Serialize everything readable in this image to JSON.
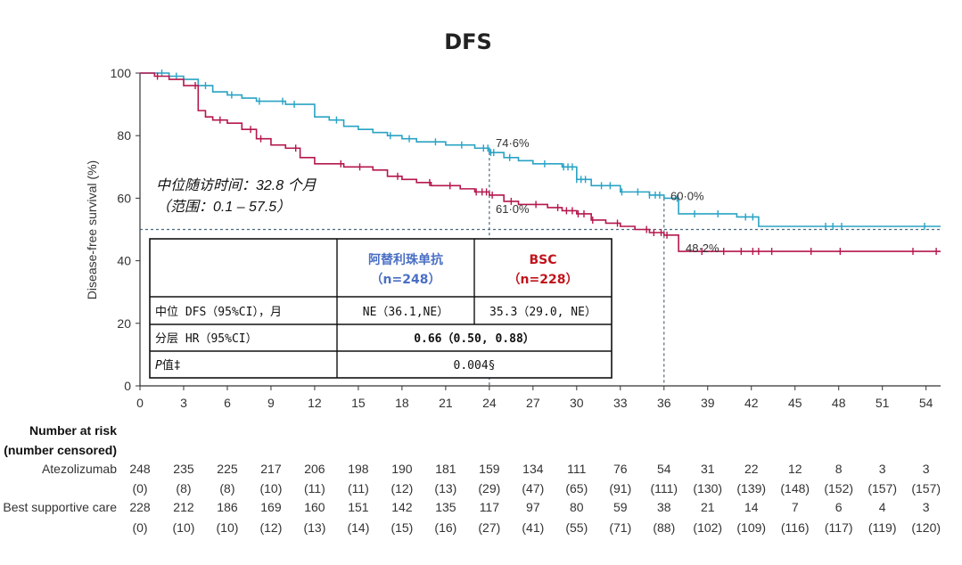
{
  "chart_data": {
    "type": "line",
    "title": "DFS",
    "xlabel": "",
    "ylabel": "Disease-free survival (%)",
    "xlim": [
      0,
      55
    ],
    "ylim": [
      0,
      100
    ],
    "xticks": [
      0,
      3,
      6,
      9,
      12,
      15,
      18,
      21,
      24,
      27,
      30,
      33,
      36,
      39,
      42,
      45,
      48,
      51,
      54
    ],
    "yticks": [
      0,
      20,
      40,
      60,
      80,
      100
    ],
    "reference_line_y": 50,
    "series": [
      {
        "name": "Atezolizumab",
        "color": "#29a3c4",
        "x": [
          0,
          1,
          2,
          3,
          4,
          5,
          6,
          7,
          8,
          9,
          10,
          11,
          12,
          13,
          14,
          15,
          16,
          17,
          18,
          19,
          20,
          21,
          22,
          23,
          24,
          25,
          26,
          27,
          28,
          29,
          30,
          31,
          32,
          33,
          34,
          35,
          36,
          37,
          38,
          39,
          40,
          41,
          42,
          42.5,
          44,
          46,
          48,
          50,
          52,
          54,
          55
        ],
        "y": [
          100,
          100,
          99,
          98,
          96,
          94,
          93,
          92,
          91,
          91,
          90,
          90,
          86,
          85,
          83,
          82,
          81,
          80,
          79,
          78,
          78,
          77,
          77,
          76,
          74.6,
          73,
          72,
          71,
          71,
          70,
          66,
          64,
          64,
          62,
          62,
          61,
          60.0,
          55,
          55,
          55,
          55,
          54,
          54,
          51,
          51,
          51,
          51,
          51,
          51,
          51,
          51
        ],
        "censor_x": [
          1.5,
          2.5,
          4.5,
          6.3,
          8.2,
          9.8,
          10.6,
          13.5,
          17.2,
          18.5,
          20.3,
          22.1,
          23.6,
          23.9,
          24.1,
          24.3,
          25.4,
          27.8,
          29.1,
          29.4,
          29.7,
          30.0,
          30.3,
          30.6,
          31.7,
          32.3,
          33.1,
          34.2,
          35.0,
          35.4,
          35.7,
          36.9,
          38.1,
          39.7,
          41.6,
          42.1,
          47.1,
          47.6,
          48.2,
          53.9
        ]
      },
      {
        "name": "Best supportive care",
        "color": "#b5174b",
        "x": [
          0,
          1,
          2,
          3,
          4,
          4.5,
          5,
          6,
          7,
          8,
          9,
          10,
          11,
          12,
          13,
          14,
          15,
          16,
          17,
          18,
          19,
          20,
          21,
          22,
          23,
          24,
          25,
          26,
          27,
          28,
          29,
          30,
          31,
          32,
          33,
          34,
          35,
          36,
          37,
          38,
          39,
          42,
          45,
          48,
          51,
          54,
          55
        ],
        "y": [
          100,
          99,
          98,
          96,
          88,
          86,
          85,
          84,
          82,
          79,
          77,
          76,
          73,
          71,
          71,
          70,
          70,
          69,
          67,
          66,
          65,
          64,
          64,
          63,
          62,
          61.0,
          59,
          58,
          58,
          57,
          56,
          55,
          53,
          52,
          51,
          50,
          49,
          48.2,
          43,
          43,
          43,
          43,
          43,
          43,
          43,
          43,
          43
        ],
        "censor_x": [
          1.2,
          3.8,
          5.5,
          7.6,
          8.3,
          10.7,
          13.8,
          15.1,
          17.7,
          19.9,
          21.3,
          23.1,
          23.5,
          23.8,
          24.2,
          25.5,
          27.2,
          28.7,
          29.3,
          29.7,
          30.1,
          30.5,
          31.1,
          32.8,
          34.8,
          35.3,
          35.8,
          36.2,
          38.6,
          40.1,
          41.3,
          42.1,
          42.5,
          43.4,
          46.1,
          48.1,
          53.1,
          54.7
        ]
      }
    ],
    "annotations": [
      {
        "text": "74·6%",
        "x": 24,
        "y": 74.6,
        "series": 0
      },
      {
        "text": "61·0%",
        "x": 24,
        "y": 61.0,
        "series": 1
      },
      {
        "text": "60·0%",
        "x": 36,
        "y": 60.0,
        "series": 0
      },
      {
        "text": "48·2%",
        "x": 36,
        "y": 48.2,
        "series": 1
      }
    ],
    "vertical_markers_x": [
      24,
      36
    ],
    "legend": "none"
  },
  "follow_up": {
    "line1": "中位随访时间：32.8 个月",
    "line2": "（范围：0.1 – 57.5）"
  },
  "table": {
    "col1_header": "阿替利珠单抗",
    "col1_n": "（n=248）",
    "col2_header": "BSC",
    "col2_n": "（n=228）",
    "col1_color": "#4a6fc4",
    "col2_color": "#c0141c",
    "rows": [
      {
        "label": "中位 DFS（95%CI），月",
        "col1": "NE（36.1,NE）",
        "col2": "35.3（29.0, NE）"
      },
      {
        "label": "分层 HR（95%CI）",
        "merged": "0.66（0.50, 0.88）"
      },
      {
        "label_italic": "P",
        "label_rest": "值‡",
        "merged": "0.004§"
      }
    ]
  },
  "risk_table": {
    "heading_line1": "Number at risk",
    "heading_line2": "(number censored)",
    "times": [
      0,
      3,
      6,
      9,
      12,
      15,
      18,
      21,
      24,
      27,
      30,
      33,
      36,
      39,
      42,
      45,
      48,
      51,
      54
    ],
    "groups": [
      {
        "label": "Atezolizumab",
        "at_risk": [
          "248",
          "235",
          "225",
          "217",
          "206",
          "198",
          "190",
          "181",
          "159",
          "134",
          "111",
          "76",
          "54",
          "31",
          "22",
          "12",
          "8",
          "3",
          "3"
        ],
        "censored": [
          "(0)",
          "(8)",
          "(8)",
          "(10)",
          "(11)",
          "(11)",
          "(12)",
          "(13)",
          "(29)",
          "(47)",
          "(65)",
          "(91)",
          "(111)",
          "(130)",
          "(139)",
          "(148)",
          "(152)",
          "(157)",
          "(157)"
        ]
      },
      {
        "label": "Best supportive care",
        "at_risk": [
          "228",
          "212",
          "186",
          "169",
          "160",
          "151",
          "142",
          "135",
          "117",
          "97",
          "80",
          "59",
          "38",
          "21",
          "14",
          "7",
          "6",
          "4",
          "3"
        ],
        "censored": [
          "(0)",
          "(10)",
          "(10)",
          "(12)",
          "(13)",
          "(14)",
          "(15)",
          "(16)",
          "(27)",
          "(41)",
          "(55)",
          "(71)",
          "(88)",
          "(102)",
          "(109)",
          "(116)",
          "(117)",
          "(119)",
          "(120)"
        ]
      }
    ]
  }
}
